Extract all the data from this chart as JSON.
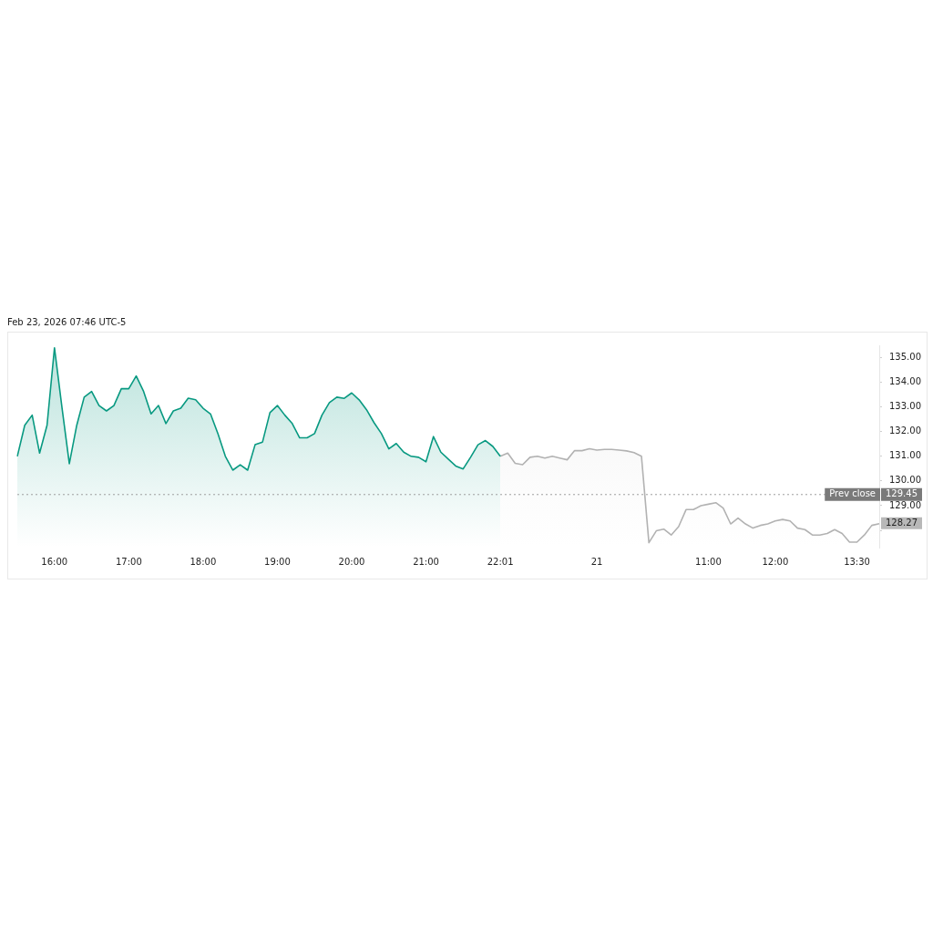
{
  "chart_data": {
    "type": "area",
    "annotations": [
      "Feb 23, 2026 07:46 UTC-5",
      "129.45"
    ],
    "categories": [
      null,
      null,
      null,
      null,
      null,
      "16:00",
      null,
      null,
      null,
      null,
      null,
      null,
      null,
      null,
      null,
      "17:00",
      null,
      null,
      null,
      null,
      null,
      null,
      null,
      null,
      null,
      "18:00",
      null,
      null,
      null,
      null,
      null,
      null,
      null,
      null,
      null,
      "19:00",
      null,
      null,
      null,
      null,
      null,
      null,
      null,
      null,
      null,
      "20:00",
      null,
      null,
      null,
      null,
      null,
      null,
      null,
      null,
      null,
      "21:00",
      null,
      null,
      null,
      null,
      null,
      null,
      null,
      null,
      null,
      "22:01",
      null,
      null,
      null,
      null,
      null,
      null,
      null,
      null,
      null,
      null,
      null,
      null,
      "21",
      null,
      null,
      null,
      null,
      null,
      null,
      null,
      null,
      null,
      null,
      null,
      null,
      null,
      null,
      "11:00",
      null,
      null,
      null,
      null,
      null,
      null,
      null,
      null,
      "12:00",
      null,
      null,
      null,
      null,
      null,
      null,
      null,
      null,
      null,
      null,
      "13:30",
      null,
      null,
      null
    ],
    "series": [
      {
        "color": "#089981",
        "values": [
          131.0,
          132.26,
          132.67,
          131.13,
          132.26,
          135.4,
          133.0,
          130.7,
          132.26,
          133.4,
          133.63,
          133.06,
          132.84,
          133.06,
          133.74,
          133.74,
          134.26,
          133.63,
          132.72,
          133.06,
          132.33,
          132.84,
          132.95,
          133.36,
          133.29,
          132.95,
          132.72,
          131.92,
          131.0,
          130.44,
          130.66,
          130.44,
          131.47,
          131.58,
          132.77,
          133.06,
          132.67,
          132.33,
          131.75,
          131.75,
          131.92,
          132.67,
          133.18,
          133.4,
          133.35,
          133.57,
          133.29,
          132.89,
          132.37,
          131.92,
          131.3,
          131.52,
          131.17,
          131.0,
          130.96,
          130.78,
          131.8,
          131.17,
          130.89,
          130.61,
          130.49,
          130.96,
          131.47,
          131.64,
          131.4,
          131.0,
          null,
          null,
          null,
          null,
          null,
          null,
          null,
          null,
          null,
          null,
          null,
          null,
          null,
          null,
          null,
          null,
          null,
          null,
          null,
          null,
          null,
          null,
          null,
          null,
          null,
          null,
          null,
          null,
          null,
          null,
          null,
          null,
          null,
          null,
          null,
          null,
          null,
          null,
          null,
          null,
          null,
          null,
          null,
          null,
          null,
          null,
          null,
          null,
          null,
          null,
          null
        ]
      },
      {
        "color": "#b2b2b2",
        "values": [
          null,
          null,
          null,
          null,
          null,
          null,
          null,
          null,
          null,
          null,
          null,
          null,
          null,
          null,
          null,
          null,
          null,
          null,
          null,
          null,
          null,
          null,
          null,
          null,
          null,
          null,
          null,
          null,
          null,
          null,
          null,
          null,
          null,
          null,
          null,
          null,
          null,
          null,
          null,
          null,
          null,
          null,
          null,
          null,
          null,
          null,
          null,
          null,
          null,
          null,
          null,
          null,
          null,
          null,
          null,
          null,
          null,
          null,
          null,
          null,
          null,
          null,
          null,
          null,
          null,
          131.0,
          131.13,
          130.72,
          130.66,
          130.96,
          131.0,
          130.93,
          131.0,
          130.93,
          130.86,
          131.23,
          131.23,
          131.31,
          131.25,
          131.28,
          131.28,
          131.25,
          131.22,
          131.15,
          131.0,
          127.5,
          127.98,
          128.05,
          127.81,
          128.15,
          128.84,
          128.84,
          129.0,
          129.06,
          129.12,
          128.9,
          128.26,
          128.5,
          128.26,
          128.09,
          128.2,
          128.26,
          128.38,
          128.44,
          128.38,
          128.09,
          128.03,
          127.81,
          127.81,
          127.87,
          128.03,
          127.87,
          127.52,
          127.52,
          127.81,
          128.2,
          128.27
        ],
        "value_labels": [
          null,
          null,
          null,
          null,
          null,
          null,
          null,
          null,
          null,
          null,
          null,
          null,
          null,
          null,
          null,
          null,
          null,
          null,
          null,
          null,
          null,
          null,
          null,
          null,
          null,
          null,
          null,
          null,
          null,
          null,
          null,
          null,
          null,
          null,
          null,
          null,
          null,
          null,
          null,
          null,
          null,
          null,
          null,
          null,
          null,
          null,
          null,
          null,
          null,
          null,
          null,
          null,
          null,
          null,
          null,
          null,
          null,
          null,
          null,
          null,
          null,
          null,
          null,
          null,
          null,
          null,
          null,
          null,
          null,
          null,
          null,
          null,
          null,
          null,
          null,
          null,
          null,
          null,
          null,
          null,
          null,
          null,
          null,
          null,
          null,
          null,
          null,
          null,
          null,
          null,
          null,
          null,
          null,
          null,
          null,
          null,
          null,
          null,
          null,
          null,
          null,
          null,
          null,
          null,
          null,
          null,
          null,
          null,
          null,
          null,
          null,
          null,
          null,
          null,
          null,
          null,
          "128.27"
        ]
      }
    ],
    "ylim": [
      127.3,
      135.5
    ],
    "yticks": [
      {
        "value": 128,
        "label": null
      },
      {
        "value": 129,
        "label": "129.00"
      },
      {
        "value": 130,
        "label": "130.00"
      },
      {
        "value": 131,
        "label": "131.00"
      },
      {
        "value": 132,
        "label": "132.00"
      },
      {
        "value": 133,
        "label": "133.00"
      },
      {
        "value": 134,
        "label": "134.00"
      },
      {
        "value": 135,
        "label": "135.00"
      }
    ],
    "ref_lines": [
      {
        "axis": "y",
        "value": 129.45,
        "label": "Prev close",
        "color": "#9e9e9e",
        "line_style": "dotted"
      }
    ],
    "grid": false,
    "legend": false,
    "marker": "none",
    "line_style": "solid"
  }
}
